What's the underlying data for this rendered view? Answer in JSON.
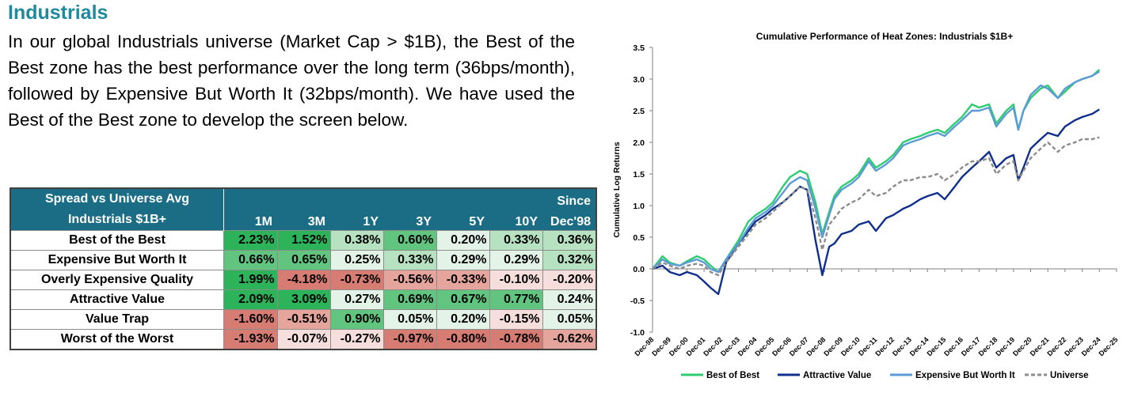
{
  "heading": "Industrials",
  "paragraph": "In our global Industrials universe (Market Cap > $1B), the Best of the Best zone has the best performance over the long term (36bps/month), followed by Expensive But Worth It (32bps/month). We have used the Best of the Best zone to develop the screen below.",
  "table": {
    "header_label_line1": "Spread vs Universe Avg",
    "header_label_line2": "Industrials $1B+",
    "columns": [
      {
        "line1": "",
        "line2": "1M"
      },
      {
        "line1": "",
        "line2": "3M"
      },
      {
        "line1": "",
        "line2": "1Y"
      },
      {
        "line1": "",
        "line2": "3Y"
      },
      {
        "line1": "",
        "line2": "5Y"
      },
      {
        "line1": "",
        "line2": "10Y"
      },
      {
        "line1": "Since",
        "line2": "Dec'98"
      }
    ],
    "rows": [
      {
        "name": "Best of the Best",
        "values": [
          "2.23%",
          "1.52%",
          "0.38%",
          "0.60%",
          "0.20%",
          "0.33%",
          "0.36%"
        ]
      },
      {
        "name": "Expensive But Worth It",
        "values": [
          "0.66%",
          "0.65%",
          "0.25%",
          "0.33%",
          "0.29%",
          "0.29%",
          "0.32%"
        ]
      },
      {
        "name": "Overly Expensive Quality",
        "values": [
          "1.99%",
          "-4.18%",
          "-0.73%",
          "-0.56%",
          "-0.33%",
          "-0.10%",
          "-0.20%"
        ]
      },
      {
        "name": "Attractive Value",
        "values": [
          "2.09%",
          "3.09%",
          "0.27%",
          "0.69%",
          "0.67%",
          "0.77%",
          "0.24%"
        ]
      },
      {
        "name": "Value Trap",
        "values": [
          "-1.60%",
          "-0.51%",
          "0.90%",
          "0.05%",
          "0.20%",
          "-0.15%",
          "0.05%"
        ]
      },
      {
        "name": "Worst of the Worst",
        "values": [
          "-1.93%",
          "-0.07%",
          "-0.27%",
          "-0.97%",
          "-0.80%",
          "-0.78%",
          "-0.62%"
        ]
      }
    ]
  },
  "colors": {
    "heading": "#1f8a9e",
    "table_header": "#1b6d86",
    "cell_strong_green": "#2db35a",
    "cell_mid_green": "#62c57f",
    "cell_light_green": "#b6e2c1",
    "cell_pale_green": "#e3f3e7",
    "cell_pale_red": "#f6dedc",
    "cell_light_red": "#e5a49c",
    "cell_red": "#d77c73"
  },
  "chart_data": {
    "type": "line",
    "title": "Cumulative Performance of Heat Zones: Industrials $1B+",
    "xlabel": "",
    "ylabel": "Cumulative Log Returns",
    "ylim": [
      -1.0,
      3.5
    ],
    "yticks": [
      "3.5",
      "3.0",
      "2.5",
      "2.0",
      "1.5",
      "1.0",
      "0.5",
      "0.0",
      "-0.5",
      "-1.0"
    ],
    "xtick_labels": [
      "Dec-98",
      "Dec-99",
      "Dec-00",
      "Dec-01",
      "Dec-02",
      "Dec-03",
      "Dec-04",
      "Dec-05",
      "Dec-06",
      "Dec-07",
      "Dec-08",
      "Dec-09",
      "Dec-10",
      "Dec-11",
      "Dec-12",
      "Dec-13",
      "Dec-14",
      "Dec-15",
      "Dec-16",
      "Dec-17",
      "Dec-18",
      "Dec-19",
      "Dec-20",
      "Dec-21",
      "Dec-22",
      "Dec-23",
      "Dec-24",
      "Dec-25"
    ],
    "x": [
      1998.92,
      1999.5,
      1999.92,
      2000.5,
      2000.92,
      2001.5,
      2001.92,
      2002.3,
      2002.75,
      2003.2,
      2003.92,
      2004.5,
      2004.92,
      2005.5,
      2005.92,
      2006.5,
      2006.92,
      2007.5,
      2007.92,
      2008.4,
      2008.8,
      2009.2,
      2009.5,
      2009.92,
      2010.5,
      2010.92,
      2011.5,
      2011.92,
      2012.5,
      2012.92,
      2013.5,
      2013.92,
      2014.5,
      2014.92,
      2015.5,
      2015.92,
      2016.5,
      2016.92,
      2017.5,
      2017.92,
      2018.5,
      2018.92,
      2019.5,
      2019.92,
      2020.2,
      2020.5,
      2020.92,
      2021.5,
      2021.92,
      2022.5,
      2022.92,
      2023.5,
      2023.92,
      2024.5,
      2024.92
    ],
    "series": [
      {
        "name": "Best of Best",
        "color": "#2ecc71",
        "dash": false,
        "values": [
          0.0,
          0.2,
          0.1,
          0.05,
          0.12,
          0.2,
          0.15,
          0.05,
          -0.05,
          0.15,
          0.45,
          0.75,
          0.85,
          0.95,
          1.05,
          1.3,
          1.45,
          1.55,
          1.5,
          1.05,
          0.55,
          0.9,
          1.15,
          1.3,
          1.4,
          1.5,
          1.75,
          1.6,
          1.7,
          1.8,
          2.0,
          2.05,
          2.1,
          2.15,
          2.2,
          2.15,
          2.3,
          2.4,
          2.6,
          2.55,
          2.6,
          2.3,
          2.5,
          2.6,
          2.2,
          2.5,
          2.7,
          2.85,
          2.9,
          2.7,
          2.8,
          2.95,
          3.0,
          3.05,
          3.15
        ]
      },
      {
        "name": "Attractive Value",
        "color": "#0f2f8c",
        "dash": false,
        "values": [
          0.0,
          0.05,
          -0.05,
          -0.1,
          -0.05,
          -0.1,
          -0.2,
          -0.3,
          -0.4,
          0.1,
          0.4,
          0.6,
          0.75,
          0.85,
          0.95,
          1.05,
          1.15,
          1.3,
          1.25,
          0.45,
          -0.1,
          0.35,
          0.4,
          0.55,
          0.6,
          0.7,
          0.75,
          0.6,
          0.8,
          0.85,
          0.95,
          1.0,
          1.1,
          1.15,
          1.2,
          1.1,
          1.3,
          1.45,
          1.6,
          1.7,
          1.85,
          1.6,
          1.75,
          1.8,
          1.4,
          1.6,
          1.9,
          2.05,
          2.15,
          2.1,
          2.25,
          2.35,
          2.4,
          2.45,
          2.52
        ]
      },
      {
        "name": "Expensive But Worth It",
        "color": "#5b9bd5",
        "dash": false,
        "values": [
          0.0,
          0.15,
          0.08,
          0.05,
          0.1,
          0.15,
          0.1,
          0.0,
          -0.05,
          0.15,
          0.4,
          0.65,
          0.8,
          0.9,
          1.0,
          1.2,
          1.35,
          1.45,
          1.4,
          0.95,
          0.5,
          0.85,
          1.1,
          1.25,
          1.35,
          1.45,
          1.7,
          1.55,
          1.65,
          1.75,
          1.95,
          2.0,
          2.05,
          2.1,
          2.15,
          2.1,
          2.25,
          2.35,
          2.5,
          2.5,
          2.55,
          2.25,
          2.45,
          2.55,
          2.2,
          2.5,
          2.75,
          2.9,
          2.85,
          2.7,
          2.85,
          2.95,
          3.0,
          3.05,
          3.12
        ]
      },
      {
        "name": "Universe",
        "color": "#8c8c8c",
        "dash": true,
        "values": [
          0.0,
          0.1,
          0.05,
          0.0,
          0.05,
          0.08,
          0.05,
          -0.05,
          -0.1,
          0.1,
          0.35,
          0.55,
          0.7,
          0.8,
          0.9,
          1.05,
          1.15,
          1.3,
          1.25,
          0.8,
          0.3,
          0.7,
          0.8,
          0.95,
          1.05,
          1.1,
          1.25,
          1.15,
          1.2,
          1.3,
          1.4,
          1.4,
          1.45,
          1.45,
          1.5,
          1.4,
          1.5,
          1.6,
          1.7,
          1.7,
          1.75,
          1.5,
          1.65,
          1.7,
          1.4,
          1.55,
          1.75,
          1.9,
          2.0,
          1.85,
          1.95,
          2.0,
          2.05,
          2.05,
          2.08
        ]
      }
    ],
    "legend": {
      "position": "bottom",
      "entries": [
        "Best of Best",
        "Attractive Value",
        "Expensive But Worth It",
        "Universe"
      ]
    },
    "grid": false
  }
}
